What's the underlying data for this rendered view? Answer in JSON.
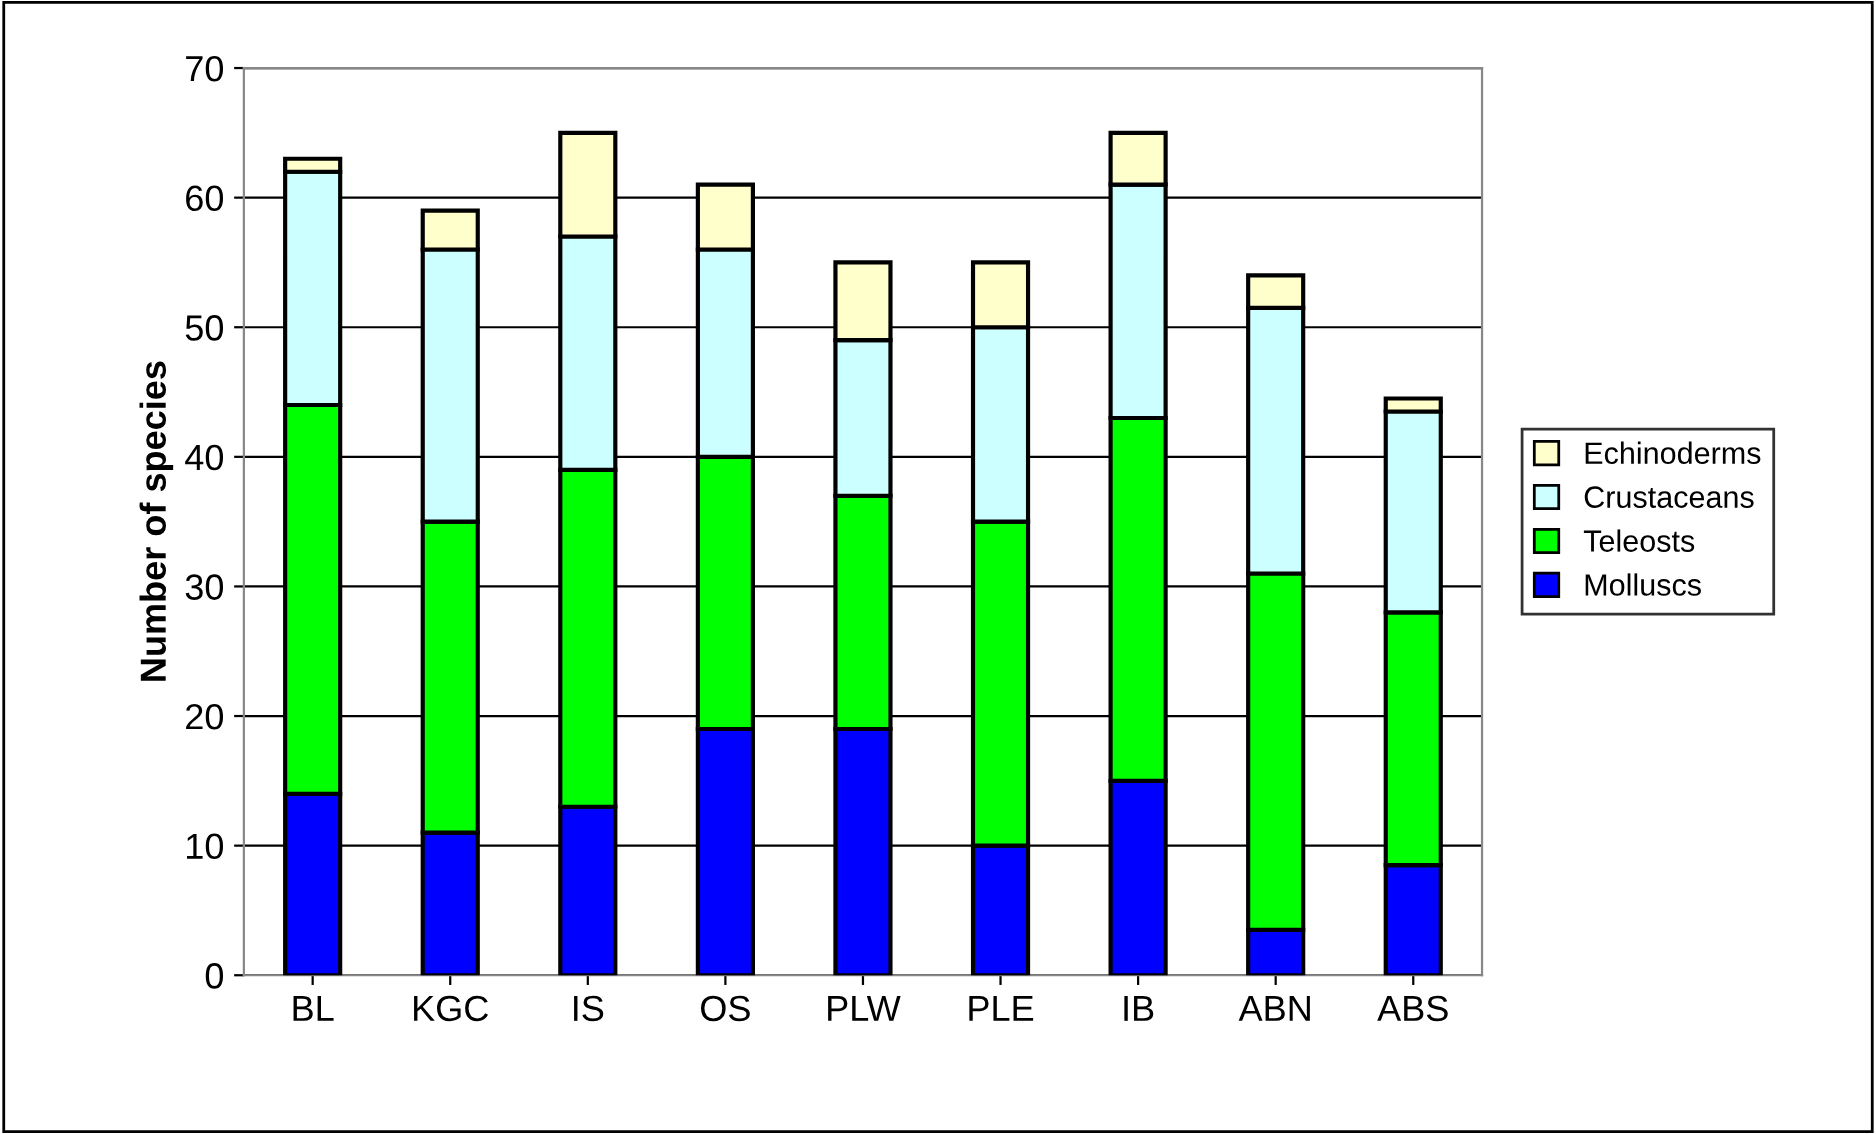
{
  "chart_data": {
    "type": "bar",
    "stacked": true,
    "ylabel": "Number of species",
    "categories": [
      "BL",
      "KGC",
      "IS",
      "OS",
      "PLW",
      "PLE",
      "IB",
      "ABN",
      "ABS"
    ],
    "series": [
      {
        "name": "Molluscs",
        "color": "#0000ff",
        "values": [
          14,
          11,
          13,
          19,
          19,
          10,
          15,
          3.5,
          8.5
        ]
      },
      {
        "name": "Teleosts",
        "color": "#00ff00",
        "values": [
          30,
          24,
          26,
          21,
          18,
          25,
          28,
          27.5,
          19.5
        ]
      },
      {
        "name": "Crustaceans",
        "color": "#ccffff",
        "values": [
          18,
          21,
          18,
          16,
          12,
          15,
          18,
          20.5,
          15.5
        ]
      },
      {
        "name": "Echinoderms",
        "color": "#ffffcc",
        "values": [
          1,
          3,
          8,
          5,
          6,
          5,
          4,
          2.5,
          1
        ]
      }
    ],
    "ylim": [
      0,
      70
    ],
    "yticks": [
      0,
      10,
      20,
      30,
      40,
      50,
      60,
      70
    ],
    "grid": "y",
    "legend": "right"
  }
}
